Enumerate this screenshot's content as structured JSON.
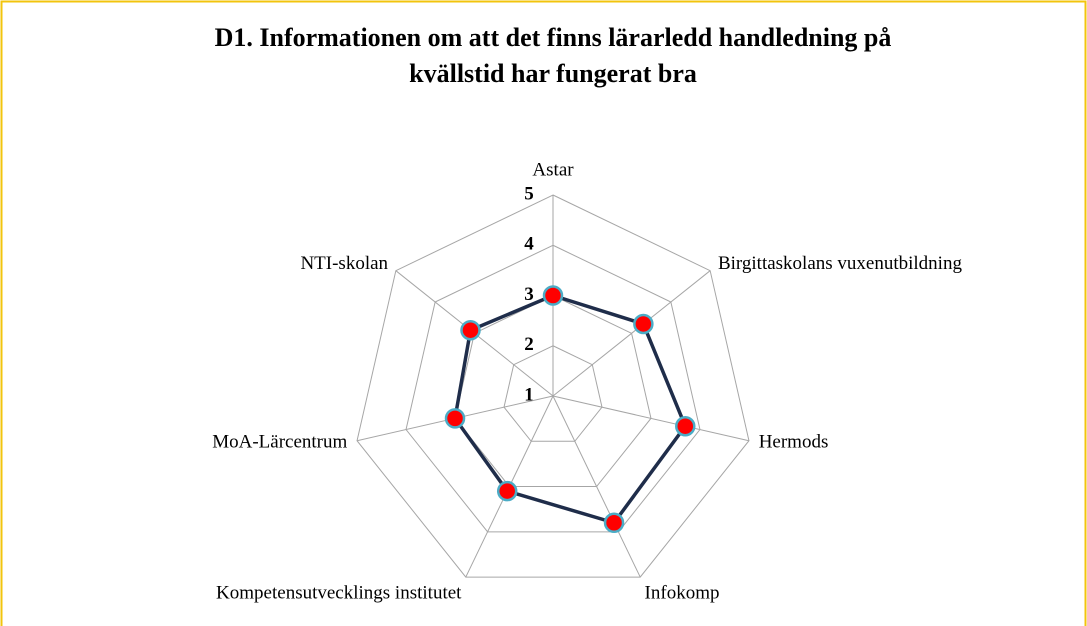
{
  "chart_data": {
    "type": "radar",
    "title": [
      "D1. Informationen om att det finns lärarledd handledning på",
      "kvällstid har fungerat bra"
    ],
    "categories": [
      "Astar",
      "Birgittaskolans vuxenutbildning",
      "Hermods",
      "Infokomp",
      "Kompetensutvecklings institutet",
      "MoA-Lärcentrum",
      "NTI-skolan"
    ],
    "series": [
      {
        "name": null,
        "color": "#1f2d4a",
        "marker_color": "#ff0000",
        "marker_edge": "#4bacc6",
        "values": [
          3.0,
          3.3,
          3.7,
          3.8,
          3.1,
          3.0,
          3.1
        ]
      }
    ],
    "ylim": [
      1,
      5
    ],
    "yticks": [
      1,
      2,
      3,
      4,
      5
    ],
    "grid": true
  }
}
